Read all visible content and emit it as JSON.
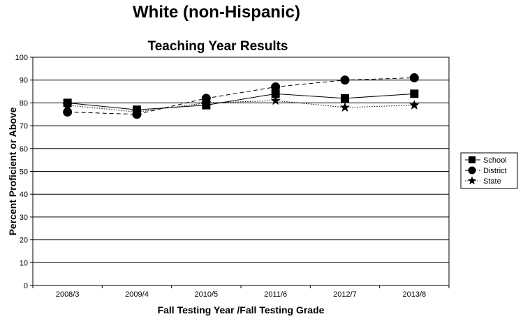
{
  "page_title": "White (non-Hispanic)",
  "chart_data": {
    "type": "line",
    "title": "Teaching Year Results",
    "xlabel": "Fall Testing Year /Fall Testing Grade",
    "ylabel": "Percent Proficient or Above",
    "categories": [
      "2008/3",
      "2009/4",
      "2010/5",
      "2011/6",
      "2012/7",
      "2013/8"
    ],
    "ylim": [
      0,
      100
    ],
    "yticks": [
      0,
      10,
      20,
      30,
      40,
      50,
      60,
      70,
      80,
      90,
      100
    ],
    "grid": true,
    "legend_position": "right",
    "series": [
      {
        "name": "School",
        "marker": "square",
        "line": "solid",
        "values": [
          80,
          77,
          79,
          84,
          82,
          84
        ]
      },
      {
        "name": "District",
        "marker": "circle",
        "line": "dashed",
        "values": [
          76,
          75,
          82,
          87,
          90,
          91
        ]
      },
      {
        "name": "State",
        "marker": "star",
        "line": "dotted",
        "values": [
          79,
          76,
          80,
          81,
          78,
          79
        ]
      }
    ]
  }
}
